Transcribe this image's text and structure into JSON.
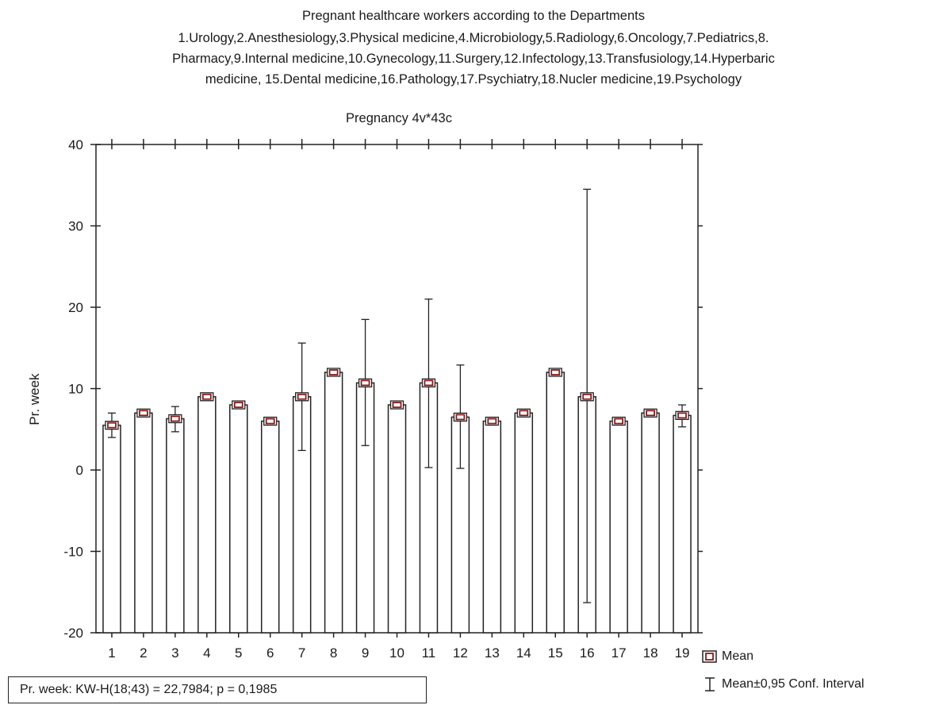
{
  "chart_data": {
    "type": "bar",
    "title": "Pregnant healthcare workers according to the Departments",
    "title_lines": [
      "Pregnant healthcare workers according to the Departments",
      "1.Urology,2.Anesthesiology,3.Physical medicine,4.Microbiology,5.Radiology,6.Oncology,7.Pediatrics,8.",
      "Pharmacy,9.Internal medicine,10.Gynecology,11.Surgery,12.Infectology,13.Transfusiology,14.Hyperbaric",
      "medicine, 15.Dental medicine,16.Pathology,17.Psychiatry,18.Nucler medicine,19.Psychology"
    ],
    "subtitle": "Pregnancy 4v*43c",
    "xlabel": "",
    "ylabel": "Pr. week",
    "ylim": [
      -20,
      40
    ],
    "yticks": [
      -20,
      -10,
      0,
      10,
      20,
      30,
      40
    ],
    "categories": [
      "1",
      "2",
      "3",
      "4",
      "5",
      "6",
      "7",
      "8",
      "9",
      "10",
      "11",
      "12",
      "13",
      "14",
      "15",
      "16",
      "17",
      "18",
      "19"
    ],
    "series": [
      {
        "name": "Mean",
        "values": [
          5.5,
          7,
          6.3,
          9,
          8,
          6,
          9,
          12,
          10.7,
          8,
          10.7,
          6.5,
          6,
          7,
          12,
          9,
          6,
          7,
          6.7
        ],
        "ci_low": [
          4,
          7,
          4.7,
          9,
          8,
          6,
          2.4,
          12,
          3,
          8,
          0.3,
          0.2,
          6,
          7,
          12,
          -16.3,
          6,
          7,
          5.3
        ],
        "ci_high": [
          7,
          7,
          7.8,
          9,
          8,
          6,
          15.6,
          12,
          18.5,
          8,
          21,
          12.9,
          6,
          7,
          12,
          34.5,
          6,
          7,
          8
        ]
      }
    ],
    "grid": false,
    "legend": {
      "position": "bottom-right",
      "entries": [
        "Mean",
        "Mean±0,95 Conf. Interval"
      ]
    },
    "annotation": "Pr. week:  KW-H(18;43) = 22,7984; p = 0,1985",
    "colors": {
      "bar_fill": "#ffffff",
      "bar_stroke": "#222222",
      "mean_marker": "#8b1a1a"
    }
  }
}
